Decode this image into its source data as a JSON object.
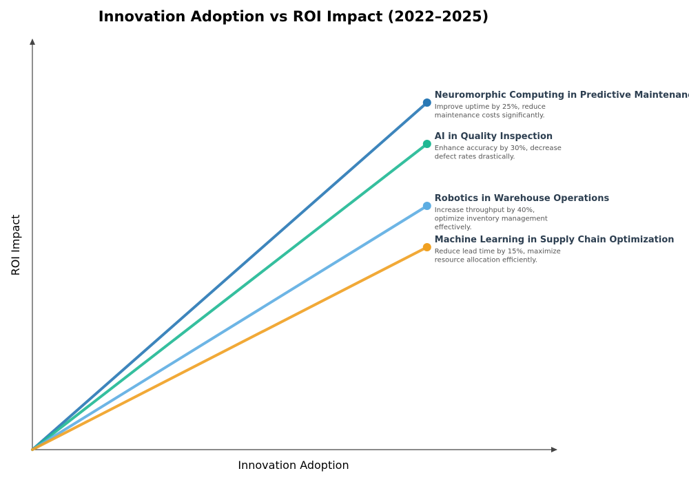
{
  "chart_data": {
    "type": "line",
    "title": "Innovation Adoption vs ROI Impact (2022–2025)",
    "xlabel": "Innovation Adoption",
    "ylabel": "ROI Impact",
    "grid": false,
    "legend": "none",
    "series": [
      {
        "name": "Neuromorphic Computing in Predictive Maintenance",
        "description": [
          "Improve uptime by 25%, reduce",
          "maintenance costs significantly."
        ],
        "color": "#2878b5",
        "x": [
          0,
          0.7
        ],
        "y": [
          0,
          0.84
        ]
      },
      {
        "name": "AI in Quality Inspection",
        "description": [
          "Enhance accuracy by 30%, decrease",
          "defect rates drastically."
        ],
        "color": "#1fb893",
        "x": [
          0,
          0.7
        ],
        "y": [
          0,
          0.74
        ]
      },
      {
        "name": "Robotics in Warehouse Operations",
        "description": [
          "Increase throughput by 40%,",
          "optimize inventory management",
          "effectively."
        ],
        "color": "#5dade2",
        "x": [
          0,
          0.7
        ],
        "y": [
          0,
          0.59
        ]
      },
      {
        "name": "Machine Learning in Supply Chain Optimization",
        "description": [
          "Reduce lead time by 15%, maximize",
          "resource allocation efficiently."
        ],
        "color": "#f0a021",
        "x": [
          0,
          0.7
        ],
        "y": [
          0,
          0.49
        ]
      }
    ]
  }
}
